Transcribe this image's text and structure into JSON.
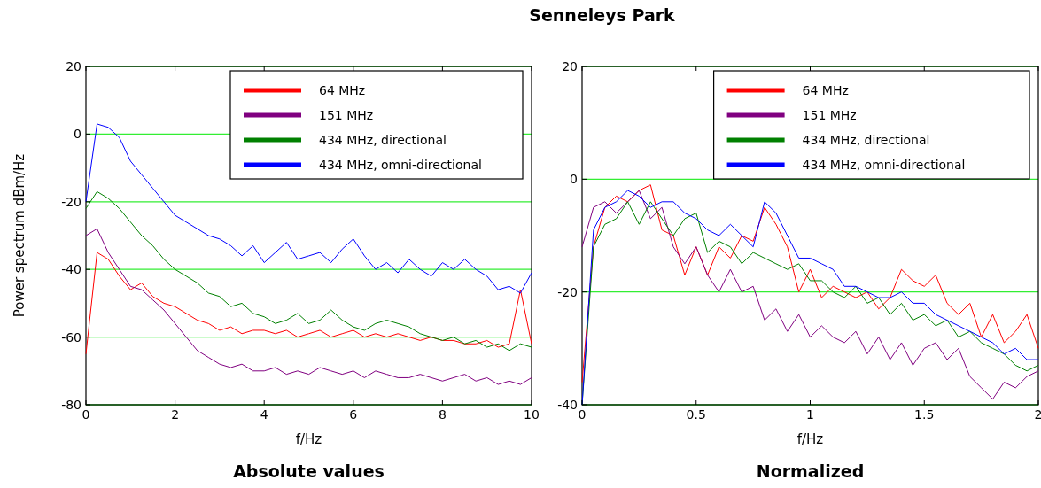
{
  "chart_data": [
    {
      "type": "line",
      "title": "Absolute values",
      "xlabel": "f/Hz",
      "ylabel": "Power spectrum dBm/Hz",
      "annotations": [
        "Senneleys Park"
      ],
      "xlim": [
        0,
        10
      ],
      "xticks": [
        0,
        2,
        4,
        6,
        8,
        10
      ],
      "ylim": [
        -80,
        20
      ],
      "yticks": [
        -80,
        -60,
        -40,
        -20,
        0,
        20
      ],
      "grid": "y",
      "legend": "top right",
      "line_style": "solid",
      "x": [
        0,
        0.25,
        0.5,
        0.75,
        1,
        1.25,
        1.5,
        1.75,
        2,
        2.25,
        2.5,
        2.75,
        3,
        3.25,
        3.5,
        3.75,
        4,
        4.25,
        4.5,
        4.75,
        5,
        5.25,
        5.5,
        5.75,
        6,
        6.25,
        6.5,
        6.75,
        7,
        7.25,
        7.5,
        7.75,
        8,
        8.25,
        8.5,
        8.75,
        9,
        9.25,
        9.5,
        9.75,
        10
      ],
      "series": [
        {
          "name": "64 MHz",
          "color": "#ff0000",
          "values": [
            -65,
            -35,
            -37,
            -42,
            -46,
            -44,
            -48,
            -50,
            -51,
            -53,
            -55,
            -56,
            -58,
            -57,
            -59,
            -58,
            -58,
            -59,
            -58,
            -60,
            -59,
            -58,
            -60,
            -59,
            -58,
            -60,
            -59,
            -60,
            -59,
            -60,
            -61,
            -60,
            -61,
            -61,
            -62,
            -62,
            -61,
            -63,
            -62,
            -46,
            -62
          ]
        },
        {
          "name": "151 MHz",
          "color": "#800080",
          "values": [
            -30,
            -28,
            -35,
            -40,
            -45,
            -46,
            -49,
            -52,
            -56,
            -60,
            -64,
            -66,
            -68,
            -69,
            -68,
            -70,
            -70,
            -69,
            -71,
            -70,
            -71,
            -69,
            -70,
            -71,
            -70,
            -72,
            -70,
            -71,
            -72,
            -72,
            -71,
            -72,
            -73,
            -72,
            -71,
            -73,
            -72,
            -74,
            -73,
            -74,
            -72
          ]
        },
        {
          "name": "434 MHz, directional",
          "color": "#008000",
          "values": [
            -22,
            -17,
            -19,
            -22,
            -26,
            -30,
            -33,
            -37,
            -40,
            -42,
            -44,
            -47,
            -48,
            -51,
            -50,
            -53,
            -54,
            -56,
            -55,
            -53,
            -56,
            -55,
            -52,
            -55,
            -57,
            -58,
            -56,
            -55,
            -56,
            -57,
            -59,
            -60,
            -61,
            -60,
            -62,
            -61,
            -63,
            -62,
            -64,
            -62,
            -63
          ]
        },
        {
          "name": "434 MHz, omni-directional",
          "color": "#0000ff",
          "values": [
            -20,
            3,
            2,
            -1,
            -8,
            -12,
            -16,
            -20,
            -24,
            -26,
            -28,
            -30,
            -31,
            -33,
            -36,
            -33,
            -38,
            -35,
            -32,
            -37,
            -36,
            -35,
            -38,
            -34,
            -31,
            -36,
            -40,
            -38,
            -41,
            -37,
            -40,
            -42,
            -38,
            -40,
            -37,
            -40,
            -42,
            -46,
            -45,
            -47,
            -41
          ]
        }
      ]
    },
    {
      "type": "line",
      "title": "Normalized",
      "xlabel": "f/Hz",
      "xlim": [
        0,
        2
      ],
      "xticks": [
        0,
        0.5,
        1,
        1.5,
        2
      ],
      "ylim": [
        -40,
        20
      ],
      "yticks": [
        -40,
        -20,
        0,
        20
      ],
      "grid": "y",
      "legend": "top right",
      "line_style": "solid",
      "x": [
        0,
        0.05,
        0.1,
        0.15,
        0.2,
        0.25,
        0.3,
        0.35,
        0.4,
        0.45,
        0.5,
        0.55,
        0.6,
        0.65,
        0.7,
        0.75,
        0.8,
        0.85,
        0.9,
        0.95,
        1,
        1.05,
        1.1,
        1.15,
        1.2,
        1.25,
        1.3,
        1.35,
        1.4,
        1.45,
        1.5,
        1.55,
        1.6,
        1.65,
        1.7,
        1.75,
        1.8,
        1.85,
        1.9,
        1.95,
        2
      ],
      "series": [
        {
          "name": "64 MHz",
          "color": "#ff0000",
          "values": [
            -36,
            -12,
            -5,
            -3,
            -4,
            -2,
            -1,
            -9,
            -10,
            -17,
            -12,
            -17,
            -12,
            -14,
            -10,
            -11,
            -5,
            -8,
            -12,
            -20,
            -16,
            -21,
            -19,
            -20,
            -21,
            -20,
            -23,
            -21,
            -16,
            -18,
            -19,
            -17,
            -22,
            -24,
            -22,
            -28,
            -24,
            -29,
            -27,
            -24,
            -30
          ]
        },
        {
          "name": "151 MHz",
          "color": "#800080",
          "values": [
            -12,
            -5,
            -4,
            -6,
            -4,
            -2,
            -7,
            -5,
            -12,
            -15,
            -12,
            -17,
            -20,
            -16,
            -20,
            -19,
            -25,
            -23,
            -27,
            -24,
            -28,
            -26,
            -28,
            -29,
            -27,
            -31,
            -28,
            -32,
            -29,
            -33,
            -30,
            -29,
            -32,
            -30,
            -35,
            -37,
            -39,
            -36,
            -37,
            -35,
            -34
          ]
        },
        {
          "name": "434 MHz, directional",
          "color": "#008000",
          "values": [
            -40,
            -12,
            -8,
            -7,
            -4,
            -8,
            -4,
            -7,
            -10,
            -7,
            -6,
            -13,
            -11,
            -12,
            -15,
            -13,
            -14,
            -15,
            -16,
            -15,
            -18,
            -18,
            -20,
            -21,
            -19,
            -22,
            -21,
            -24,
            -22,
            -25,
            -24,
            -26,
            -25,
            -28,
            -27,
            -29,
            -30,
            -31,
            -33,
            -34,
            -33
          ]
        },
        {
          "name": "434 MHz, omni-directional",
          "color": "#0000ff",
          "values": [
            -40,
            -9,
            -5,
            -4,
            -2,
            -3,
            -5,
            -4,
            -4,
            -6,
            -7,
            -9,
            -10,
            -8,
            -10,
            -12,
            -4,
            -6,
            -10,
            -14,
            -14,
            -15,
            -16,
            -19,
            -19,
            -20,
            -21,
            -21,
            -20,
            -22,
            -22,
            -24,
            -25,
            -26,
            -27,
            -28,
            -29,
            -31,
            -30,
            -32,
            -32
          ]
        }
      ]
    }
  ]
}
